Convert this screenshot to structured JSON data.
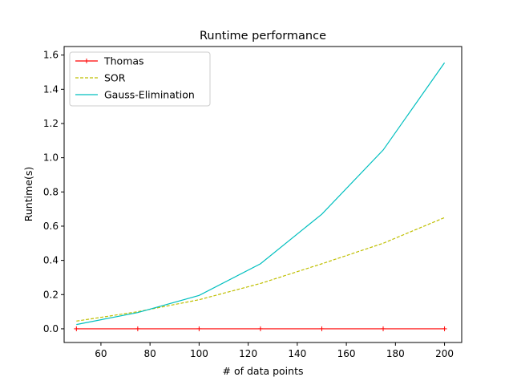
{
  "chart_data": {
    "type": "line",
    "title": "Runtime performance",
    "xlabel": "# of data points",
    "ylabel": "Runtime(s)",
    "xlim": [
      45,
      207
    ],
    "ylim": [
      -0.08,
      1.65
    ],
    "xticks": [
      60,
      80,
      100,
      120,
      140,
      160,
      180,
      200
    ],
    "yticks": [
      0.0,
      0.2,
      0.4,
      0.6,
      0.8,
      1.0,
      1.2,
      1.4,
      1.6
    ],
    "grid": false,
    "legend_position": "top-left",
    "x": [
      50,
      75,
      100,
      125,
      150,
      175,
      200
    ],
    "series": [
      {
        "name": "Thomas",
        "values": [
          0.0,
          0.0,
          0.0,
          0.0,
          0.0,
          0.0,
          0.0
        ],
        "color": "#ff0000",
        "style": "solid",
        "marker": "+"
      },
      {
        "name": "SOR",
        "values": [
          0.045,
          0.1,
          0.17,
          0.265,
          0.38,
          0.5,
          0.65
        ],
        "color": "#bfbf00",
        "style": "dashed",
        "marker": "none"
      },
      {
        "name": "Gauss-Elimination",
        "values": [
          0.025,
          0.095,
          0.195,
          0.38,
          0.67,
          1.045,
          1.555
        ],
        "color": "#00bfbf",
        "style": "solid",
        "marker": "none"
      }
    ]
  }
}
